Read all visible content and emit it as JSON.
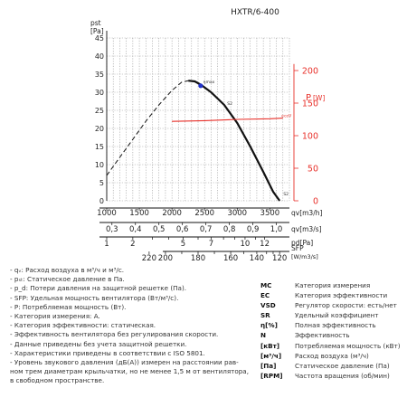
{
  "chart_data": {
    "type": "line",
    "title": "HXTR/6-400",
    "left_axis": {
      "label_top": "pst",
      "label_unit": "[Pa]",
      "ticks": [
        0,
        5,
        10,
        15,
        20,
        25,
        30,
        35,
        40,
        45
      ],
      "range": [
        0,
        45
      ]
    },
    "right_axis": {
      "label": "P",
      "unit": "[W]",
      "ticks": [
        0,
        50,
        100,
        150,
        200
      ],
      "range": [
        0,
        250
      ],
      "color": "#e8302a"
    },
    "x_axis_m3h": {
      "label": "qv",
      "unit": "[m3/h]",
      "ticks": [
        1000,
        1500,
        2000,
        2500,
        3000,
        3500
      ],
      "range": [
        1000,
        3800
      ]
    },
    "x_axis_m3s": {
      "label": "qv",
      "unit": "[m3/s]",
      "ticks": [
        "0,3",
        "0,4",
        "0,5",
        "0,6",
        "0,7",
        "0,8",
        "0,9",
        "1,0"
      ]
    },
    "x_axis_pd": {
      "label": "pd",
      "unit": "[Pa]",
      "ticks": [
        "1",
        "2",
        "3",
        "4",
        "5",
        "6",
        "7",
        "8",
        "9",
        "10",
        "11",
        "12"
      ],
      "labeled": [
        "1",
        "2",
        "5",
        "7",
        "10",
        "12"
      ]
    },
    "x_axis_sfp": {
      "label": "SFP",
      "unit": "[W/m3/s]",
      "ticks": [
        "200",
        "180",
        "160",
        "140",
        "120"
      ],
      "minor": [
        "220",
        "200",
        "190",
        "180",
        "170",
        "160",
        "150",
        "140",
        "130",
        "120",
        "110"
      ]
    },
    "series": [
      {
        "name": "",
        "style": "dashed",
        "color": "#111111",
        "x": [
          1000,
          1200,
          1400,
          1600,
          1800,
          2000,
          2150,
          2250
        ],
        "y": [
          7,
          12,
          17,
          22,
          26.5,
          30.5,
          32.8,
          33.2
        ]
      },
      {
        "name": "",
        "style": "solid",
        "color": "#111111",
        "x": [
          2250,
          2350,
          2450,
          2600,
          2800,
          3000,
          3200,
          3400,
          3550,
          3650
        ],
        "y": [
          33.2,
          33,
          32,
          30,
          26.5,
          21.5,
          15,
          8,
          2.5,
          0
        ]
      },
      {
        "name": "",
        "style": "solid",
        "color": "#e8302a",
        "axis": "right",
        "x": [
          2000,
          2500,
          3000,
          3500,
          3700
        ],
        "y": [
          122,
          123,
          125,
          126,
          127
        ]
      }
    ],
    "annotations": [
      {
        "text": "ηmax",
        "x": 2450,
        "y": 32
      },
      {
        "text": "S2",
        "x": 2820,
        "y": 26
      },
      {
        "text": "S2",
        "x": 3680,
        "y": 1
      },
      {
        "text": "ecoV",
        "x": 3650,
        "y": 126
      }
    ],
    "marker": {
      "x": 2440,
      "y": 31.8,
      "color": "#2233cc"
    },
    "grid": true
  },
  "notes": [
    "- qᵥ: Расход воздуха в м³/ч и м³/с.",
    "- pₛₜ: Статическое давление в Па.",
    "- p_d: Потери давления на защитной решетке (Па).",
    "- SFP: Удельная мощность вентилятора (Вт/м³/с).",
    "- P: Потребляемая мощность (Вт).",
    "- Категория измерения: A.",
    "- Категория эффективности: статическая.",
    "- Эффективность вентилятора без регулирования скорости.",
    "- Данные приведены без учета защитной решетки.",
    "- Характеристики приведены в соответствии с ISO 5801.",
    "- Уровень звукового давления (дБ(A)) измерен на расстоянии рав-",
    "ном трем диаметрам крыльчатки, но не менее 1,5 м от вентилятора,",
    "в свободном пространстве."
  ],
  "legend": [
    {
      "abbr": "MC",
      "text": "Категория измерения"
    },
    {
      "abbr": "EC",
      "text": "Категория эффективности"
    },
    {
      "abbr": "VSD",
      "text": "Регулятор скорости: есть/нет"
    },
    {
      "abbr": "SR",
      "text": "Удельный коэффициент"
    },
    {
      "abbr": "η[%]",
      "text": "Полная эффективность"
    },
    {
      "abbr": "N",
      "text": "Эффективность"
    },
    {
      "abbr": "[кВт]",
      "text": "Потребляемая мощность (кВт)"
    },
    {
      "abbr": "[м³/ч]",
      "text": "Расход воздуха (м³/ч)"
    },
    {
      "abbr": "[Па]",
      "text": "Статическое давление (Па)"
    },
    {
      "abbr": "[RPM]",
      "text": "Частота вращения (об/мин)"
    }
  ]
}
